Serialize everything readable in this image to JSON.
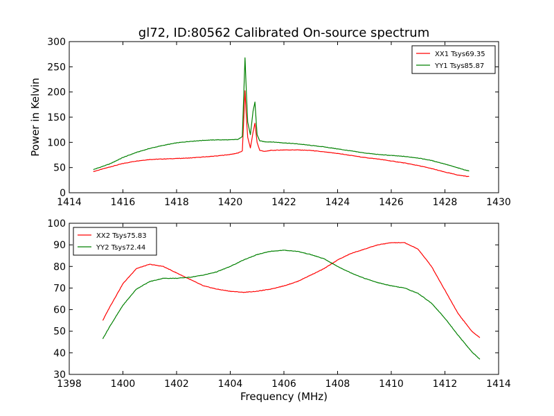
{
  "chart_data": [
    {
      "type": "line",
      "title": "gl72, ID:80562 Calibrated On-source spectrum",
      "xlabel": "",
      "ylabel": "Power in Kelvin",
      "xlim": [
        1414,
        1430
      ],
      "ylim": [
        0,
        300
      ],
      "xticks": [
        "1414",
        "1416",
        "1418",
        "1420",
        "1422",
        "1424",
        "1426",
        "1428",
        "1430"
      ],
      "yticks": [
        "0",
        "50",
        "100",
        "150",
        "200",
        "250",
        "300"
      ],
      "legend_position": "top-right",
      "series": [
        {
          "name": "XX1 Tsys69.35",
          "color": "#ff0000",
          "x": [
            1414.9,
            1415.5,
            1416,
            1416.5,
            1417,
            1417.5,
            1418,
            1418.5,
            1419,
            1419.5,
            1420,
            1420.3,
            1420.45,
            1420.55,
            1420.6,
            1420.65,
            1420.75,
            1420.85,
            1420.92,
            1421.0,
            1421.1,
            1421.3,
            1421.5,
            1422,
            1422.5,
            1423,
            1423.5,
            1424,
            1424.5,
            1425,
            1425.5,
            1426,
            1426.5,
            1427,
            1427.5,
            1428,
            1428.5,
            1428.9
          ],
          "values": [
            42,
            51,
            58,
            63,
            66,
            67,
            68,
            69,
            71,
            73,
            76,
            79,
            83,
            202,
            150,
            110,
            89,
            120,
            138,
            100,
            84,
            82,
            84,
            85,
            85,
            84,
            81,
            78,
            74,
            70,
            67,
            63,
            59,
            54,
            48,
            41,
            35,
            32
          ]
        },
        {
          "name": "YY1 Tsys85.87",
          "color": "#008000",
          "x": [
            1414.9,
            1415.5,
            1416,
            1416.5,
            1417,
            1417.5,
            1418,
            1418.5,
            1419,
            1419.5,
            1420,
            1420.3,
            1420.45,
            1420.55,
            1420.6,
            1420.65,
            1420.75,
            1420.85,
            1420.92,
            1421.0,
            1421.1,
            1421.3,
            1421.5,
            1422,
            1422.5,
            1423,
            1423.5,
            1424,
            1424.5,
            1425,
            1425.5,
            1426,
            1426.5,
            1427,
            1427.5,
            1428,
            1428.5,
            1428.9
          ],
          "values": [
            46,
            57,
            70,
            80,
            88,
            94,
            99,
            102,
            104,
            105,
            105,
            106,
            112,
            268,
            200,
            140,
            115,
            162,
            180,
            115,
            103,
            101,
            101,
            99,
            97,
            94,
            91,
            87,
            83,
            79,
            76,
            74,
            72,
            69,
            64,
            57,
            49,
            43
          ]
        }
      ]
    },
    {
      "type": "line",
      "title": "",
      "xlabel": "Frequency (MHz)",
      "ylabel": "",
      "xlim": [
        1398,
        1414
      ],
      "ylim": [
        30,
        100
      ],
      "xticks": [
        "1398",
        "1400",
        "1402",
        "1404",
        "1406",
        "1408",
        "1410",
        "1412",
        "1414"
      ],
      "yticks": [
        "30",
        "40",
        "50",
        "60",
        "70",
        "80",
        "90",
        "100"
      ],
      "legend_position": "top-left",
      "series": [
        {
          "name": "XX2 Tsys75.83",
          "color": "#ff0000",
          "x": [
            1399.25,
            1399.5,
            1400,
            1400.5,
            1401,
            1401.5,
            1402,
            1402.5,
            1403,
            1403.5,
            1404,
            1404.5,
            1405,
            1405.5,
            1406,
            1406.5,
            1407,
            1407.5,
            1408,
            1408.5,
            1409,
            1409.5,
            1410,
            1410.5,
            1411,
            1411.5,
            1412,
            1412.5,
            1413,
            1413.3
          ],
          "values": [
            55,
            61,
            72,
            79,
            81,
            80,
            77,
            74,
            71,
            69.5,
            68.5,
            68,
            68.5,
            69.5,
            71,
            73,
            76,
            79,
            83,
            86,
            88,
            90,
            91,
            91,
            88,
            80,
            69,
            58,
            50,
            47
          ]
        },
        {
          "name": "YY2 Tsys72.44",
          "color": "#008000",
          "x": [
            1399.25,
            1399.5,
            1400,
            1400.5,
            1401,
            1401.5,
            1402,
            1402.5,
            1403,
            1403.5,
            1404,
            1404.5,
            1405,
            1405.5,
            1406,
            1406.5,
            1407,
            1407.5,
            1408,
            1408.5,
            1409,
            1409.5,
            1410,
            1410.5,
            1411,
            1411.5,
            1412,
            1412.5,
            1413,
            1413.3
          ],
          "values": [
            46.5,
            52,
            62,
            69.5,
            73,
            74.5,
            74.5,
            75,
            76,
            77.5,
            80,
            83,
            85.5,
            87,
            87.5,
            87,
            85.5,
            83.5,
            80,
            77,
            74.5,
            72.5,
            71,
            70,
            67.5,
            63,
            56,
            48,
            40.5,
            37
          ]
        }
      ]
    }
  ]
}
